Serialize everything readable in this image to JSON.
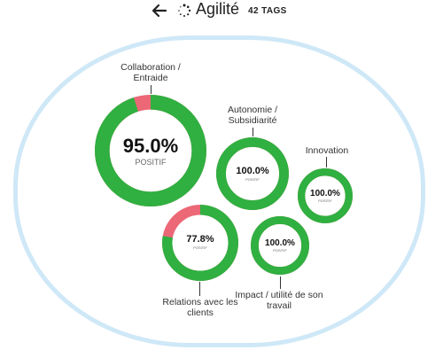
{
  "header": {
    "title": "Agilité",
    "tags_count": "42 TAGS",
    "back_icon": "arrow-left-icon",
    "spinner_icon": "dotted-circle-icon"
  },
  "colors": {
    "positive": "#2fb040",
    "negative": "#ec6877",
    "frame": "#cfe8f7"
  },
  "bubbles": [
    {
      "label": "Collaboration / Entraide",
      "percent": 95.0,
      "percent_label": "95.0%",
      "sub": "POSITIF"
    },
    {
      "label": "Autonomie / Subsidiarité",
      "percent": 100.0,
      "percent_label": "100.0%",
      "sub": "POSITIF"
    },
    {
      "label": "Innovation",
      "percent": 100.0,
      "percent_label": "100.0%",
      "sub": "POSITIF"
    },
    {
      "label": "Relations avec les clients",
      "percent": 77.8,
      "percent_label": "77.8%",
      "sub": "POSITIF"
    },
    {
      "label": "Impact / utilité de son travail",
      "percent": 100.0,
      "percent_label": "100.0%",
      "sub": "POSITIF"
    }
  ]
}
